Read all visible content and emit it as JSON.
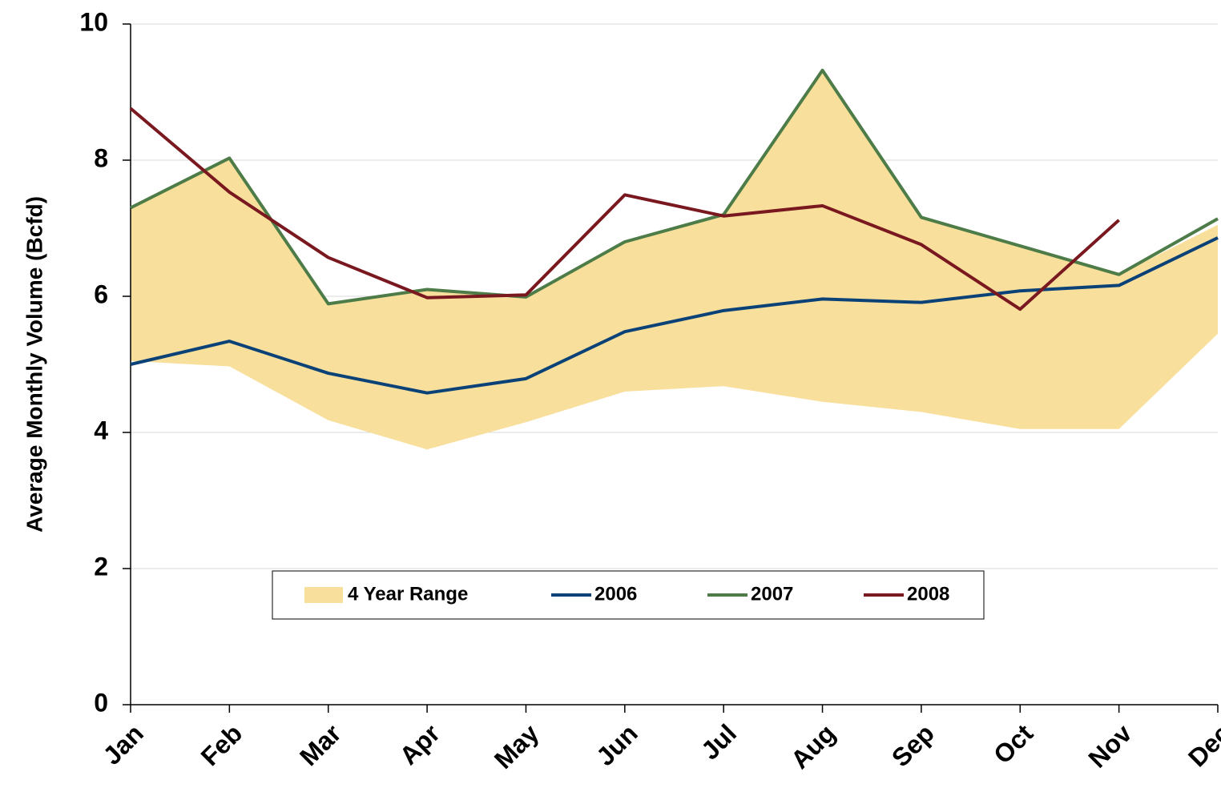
{
  "chart_data": {
    "type": "line",
    "y_label": "Average Monthly Volume (Bcfd)",
    "categories": [
      "Jan",
      "Feb",
      "Mar",
      "Apr",
      "May",
      "Jun",
      "Jul",
      "Aug",
      "Sep",
      "Oct",
      "Nov",
      "Dec"
    ],
    "range": {
      "name": "4 Year Range",
      "color": "#f8df9c",
      "high": [
        7.3,
        8.03,
        5.89,
        6.1,
        5.99,
        6.8,
        7.2,
        9.32,
        7.16,
        6.74,
        6.32,
        7.05
      ],
      "low": [
        5.05,
        4.97,
        4.18,
        3.75,
        4.15,
        4.6,
        4.68,
        4.45,
        4.3,
        4.05,
        4.05,
        5.45
      ]
    },
    "series": [
      {
        "name": "2006",
        "color": "#0a4278",
        "values": [
          5.0,
          5.34,
          4.87,
          4.58,
          4.79,
          5.48,
          5.79,
          5.96,
          5.91,
          6.08,
          6.16,
          6.86
        ]
      },
      {
        "name": "2007",
        "color": "#4d7c48",
        "values": [
          7.3,
          8.03,
          5.89,
          6.1,
          5.99,
          6.8,
          7.2,
          9.32,
          7.16,
          6.74,
          6.32,
          7.14
        ]
      },
      {
        "name": "2008",
        "color": "#7a1820",
        "values": [
          8.76,
          7.53,
          6.57,
          5.98,
          6.02,
          7.49,
          7.18,
          7.33,
          6.76,
          5.81,
          7.12,
          null
        ]
      }
    ],
    "ylim": [
      0,
      10
    ],
    "yticks": [
      0,
      2,
      4,
      6,
      8,
      10
    ],
    "grid": true,
    "legend": "lower center"
  }
}
